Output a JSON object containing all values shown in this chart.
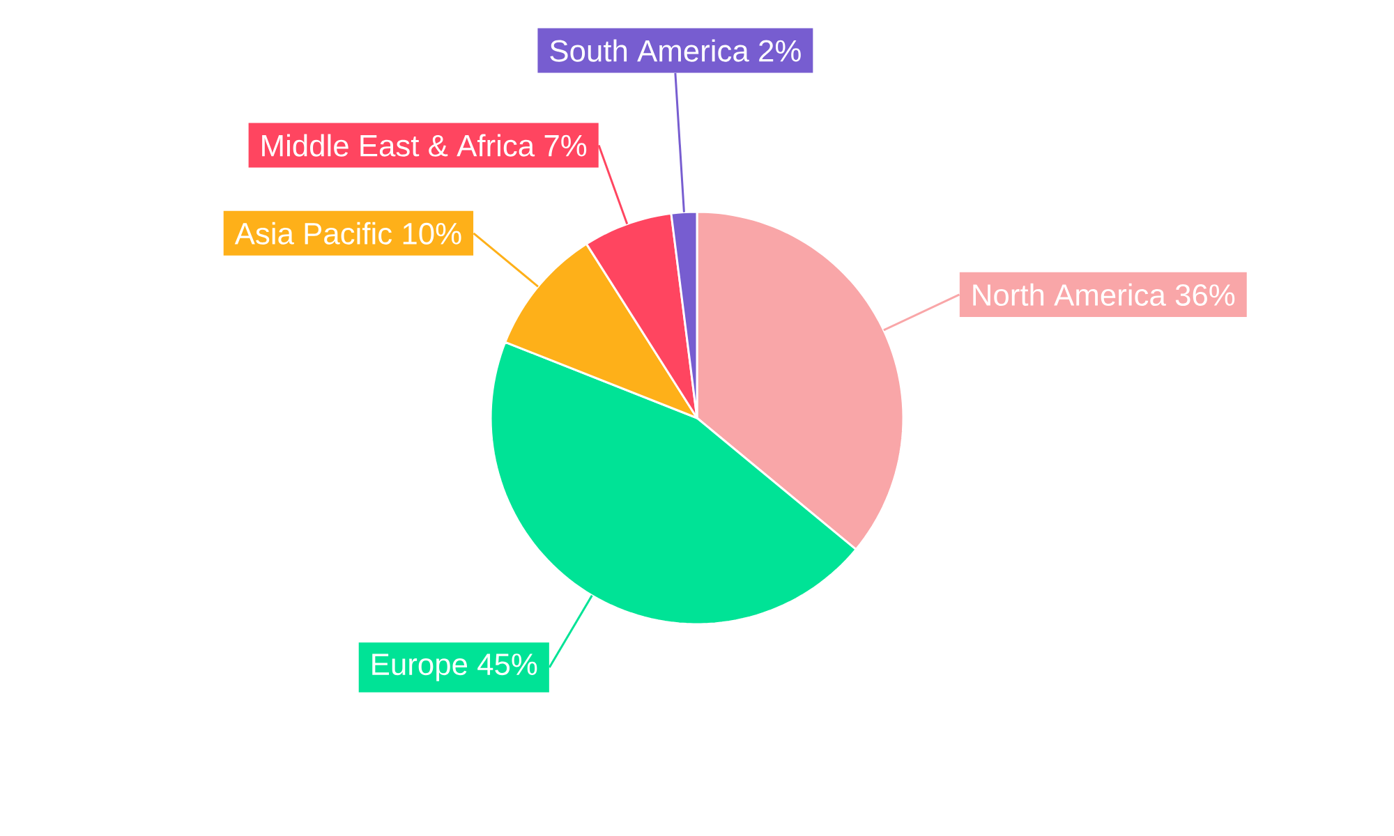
{
  "chart_data": {
    "type": "pie",
    "categories": [
      "North America",
      "Europe",
      "Asia Pacific",
      "Middle East & Africa",
      "South America"
    ],
    "values": [
      36,
      45,
      10,
      7,
      2
    ],
    "value_labels": [
      "36%",
      "45%",
      "10%",
      "7%",
      "2%"
    ],
    "colors": [
      "#f9a6a8",
      "#00e396",
      "#feb019",
      "#ff4560",
      "#775dd0"
    ]
  }
}
